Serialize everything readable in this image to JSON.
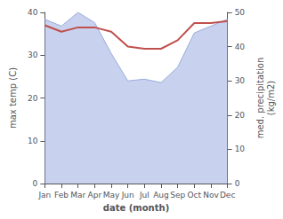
{
  "chart_data": {
    "type": "line",
    "categories": [
      "Jan",
      "Feb",
      "Mar",
      "Apr",
      "May",
      "Jun",
      "Jul",
      "Aug",
      "Sep",
      "Oct",
      "Nov",
      "Dec"
    ],
    "xlabel": "date (month)",
    "ylabel": "max temp (C)",
    "y2label": "med. precipitation\n(kg/m2)",
    "ylim": [
      0,
      40
    ],
    "yticks": [
      0,
      10,
      20,
      30,
      40
    ],
    "y2lim": [
      0,
      50
    ],
    "y2ticks": [
      0,
      10,
      20,
      30,
      40,
      50
    ],
    "grid": false,
    "series": [
      {
        "type": "area",
        "axis": "y2",
        "color": "#9aabdf",
        "values": [
          48.0,
          46.0,
          50.0,
          47.0,
          38.0,
          30.0,
          30.5,
          29.5,
          34.0,
          44.0,
          46.0,
          48.0
        ]
      },
      {
        "type": "line",
        "color": "#c0504d",
        "values": [
          37.0,
          35.5,
          36.5,
          36.5,
          35.5,
          32.0,
          31.5,
          31.5,
          33.5,
          37.5,
          37.5,
          38.0
        ]
      }
    ]
  }
}
